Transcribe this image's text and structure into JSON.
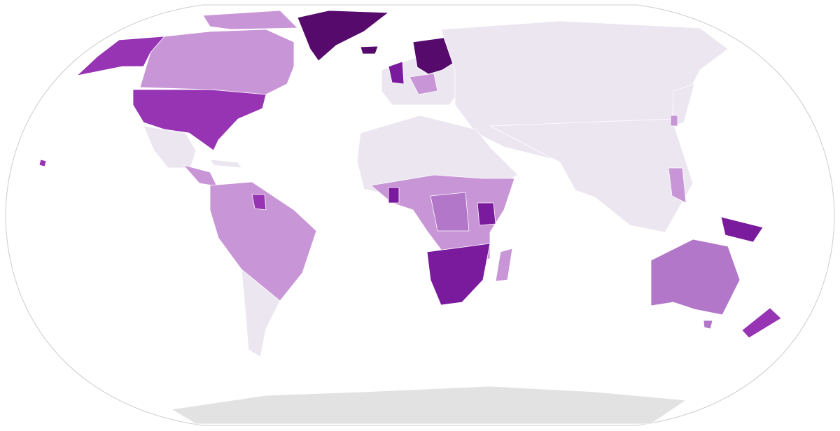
{
  "map": {
    "palette": [
      "#ebe6f0",
      "#c895d6",
      "#b277c9",
      "#9634b3",
      "#7a1a9c",
      "#560a6c"
    ],
    "ocean": "#ffffff",
    "outline": "#cccccc",
    "antarctica": "#e2e2e2"
  }
}
